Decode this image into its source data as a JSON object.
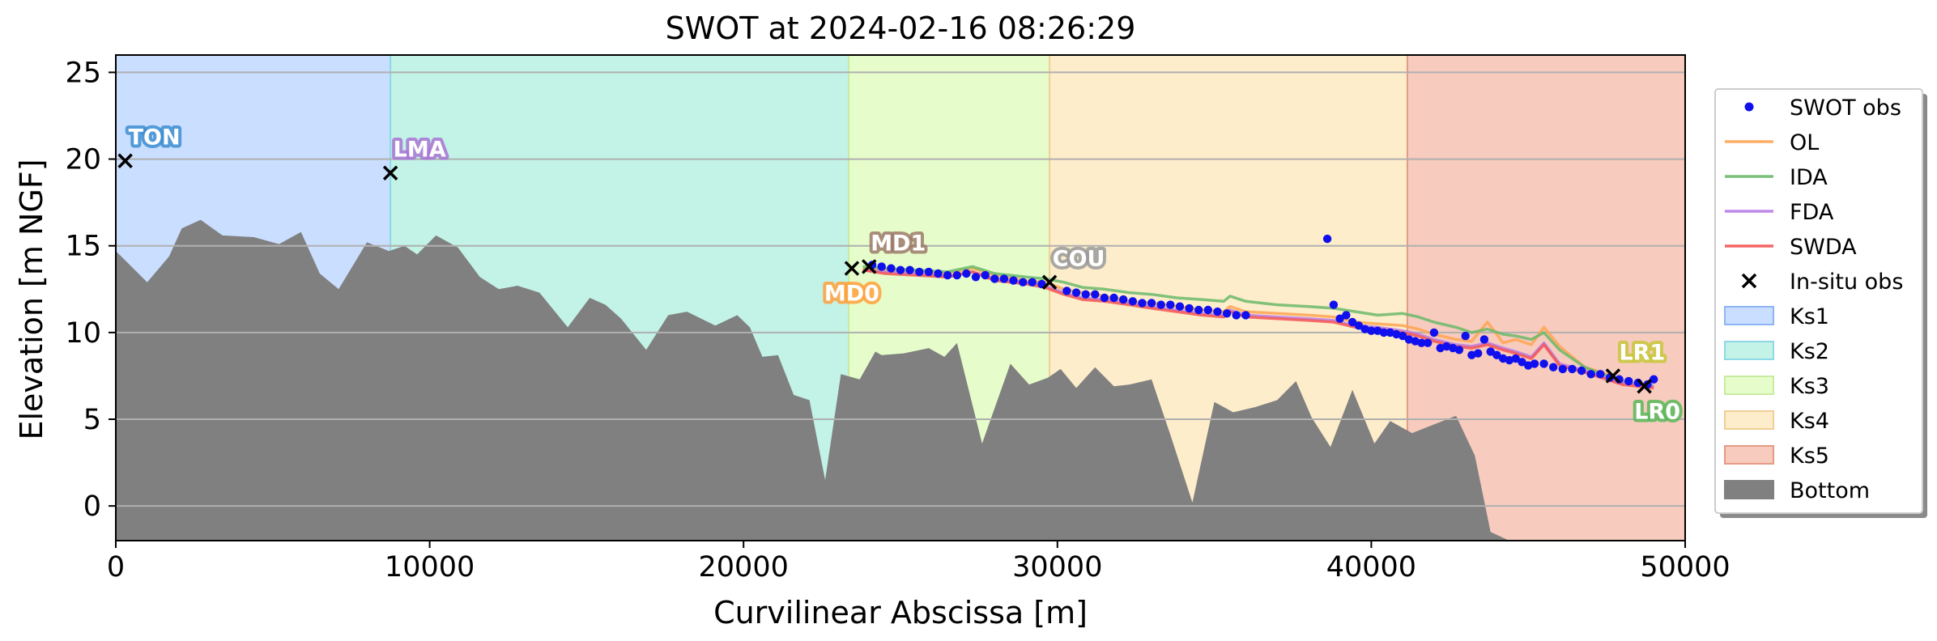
{
  "chart_data": {
    "type": "line",
    "title": "SWOT at 2024-02-16 08:26:29",
    "xlabel": "Curvilinear Abscissa [m]",
    "ylabel": "Elevation [m NGF]",
    "xlim": [
      0,
      50000
    ],
    "ylim": [
      -2,
      26
    ],
    "xticks": [
      0,
      10000,
      20000,
      30000,
      40000,
      50000
    ],
    "xtick_labels": [
      "0",
      "10000",
      "20000",
      "30000",
      "40000",
      "50000"
    ],
    "yticks": [
      0,
      5,
      10,
      15,
      20,
      25
    ],
    "ytick_labels": [
      "0",
      "5",
      "10",
      "15",
      "20",
      "25"
    ],
    "grid": "horizontal",
    "legend_position": "outside-right",
    "zones": [
      {
        "name": "Ks1",
        "x0": 0,
        "x1": 8750,
        "color": "#a9c9ff",
        "edge": "#8fb4f5"
      },
      {
        "name": "Ks2",
        "x0": 8750,
        "x1": 23350,
        "color": "#9debd6",
        "edge": "#8ed8e8"
      },
      {
        "name": "Ks3",
        "x0": 23350,
        "x1": 29750,
        "color": "#d7fbab",
        "edge": "#c9eba0"
      },
      {
        "name": "Ks4",
        "x0": 29750,
        "x1": 41150,
        "color": "#fde2ab",
        "edge": "#f0cf94"
      },
      {
        "name": "Ks5",
        "x0": 41150,
        "x1": 50000,
        "color": "#f2ab94",
        "edge": "#e59a84"
      }
    ],
    "bottom": {
      "name": "Bottom",
      "color": "#808080",
      "x": [
        0,
        1000,
        1700,
        2100,
        2700,
        3400,
        4400,
        5200,
        5900,
        6500,
        7100,
        8000,
        8700,
        9200,
        9600,
        10200,
        10900,
        11600,
        12200,
        12800,
        13500,
        14400,
        15100,
        15600,
        16100,
        16900,
        17600,
        18200,
        19100,
        19800,
        20200,
        20600,
        21100,
        21600,
        22100,
        22600,
        23100,
        23700,
        24200,
        24400,
        25100,
        25900,
        26400,
        26800,
        27600,
        28500,
        29100,
        29700,
        30100,
        30600,
        31200,
        31800,
        32300,
        33000,
        33600,
        34300,
        35000,
        35600,
        36300,
        37000,
        37600,
        38100,
        38700,
        39400,
        40100,
        40600,
        41300,
        42000,
        42700,
        43300,
        43800,
        44400,
        45000,
        45600,
        46300,
        47000,
        47700,
        48300,
        48800,
        49200
      ],
      "y": [
        14.7,
        12.9,
        14.4,
        16.0,
        16.5,
        15.6,
        15.5,
        15.1,
        15.8,
        13.4,
        12.5,
        15.2,
        14.7,
        15.0,
        14.5,
        15.6,
        14.9,
        13.2,
        12.5,
        12.7,
        12.3,
        10.3,
        12.0,
        11.6,
        10.8,
        9.0,
        11.0,
        11.2,
        10.4,
        11.0,
        10.3,
        8.6,
        8.7,
        6.4,
        6.1,
        1.5,
        7.6,
        7.3,
        8.9,
        8.7,
        8.8,
        9.1,
        8.6,
        9.4,
        3.6,
        8.2,
        7.0,
        7.4,
        7.9,
        6.8,
        8.0,
        6.9,
        7.0,
        7.3,
        4.1,
        0.2,
        6.0,
        5.4,
        5.7,
        6.1,
        7.2,
        5.1,
        3.4,
        6.7,
        3.6,
        4.9,
        4.2,
        4.7,
        5.2,
        2.9,
        -1.5,
        -2,
        -2,
        -2,
        -2,
        -2,
        -2,
        -2,
        -2,
        -2
      ]
    },
    "series": [
      {
        "name": "OL",
        "color": "#ffa454",
        "x": [
          23800,
          24500,
          25500,
          26500,
          27300,
          28000,
          29000,
          29600,
          30200,
          30800,
          31500,
          32300,
          33000,
          33800,
          34600,
          35300,
          35500,
          36000,
          37000,
          38000,
          38800,
          39500,
          40200,
          41000,
          41500,
          42000,
          42700,
          43200,
          43700,
          44200,
          44600,
          45100,
          45500,
          46000,
          46800,
          47500,
          48000,
          48500,
          49000
        ],
        "y": [
          13.7,
          13.6,
          13.5,
          13.4,
          13.7,
          13.3,
          13.0,
          12.9,
          12.5,
          12.3,
          12.1,
          11.8,
          11.7,
          11.5,
          11.3,
          11.2,
          11.5,
          11.2,
          11.1,
          11.0,
          10.9,
          10.6,
          10.5,
          10.4,
          10.2,
          9.9,
          9.6,
          9.5,
          10.6,
          9.4,
          9.6,
          9.3,
          10.3,
          9.2,
          8.0,
          7.6,
          7.2,
          7.0,
          6.9
        ]
      },
      {
        "name": "IDA",
        "color": "#6bb86b",
        "x": [
          23800,
          24500,
          25500,
          26500,
          27300,
          28000,
          29000,
          29600,
          30200,
          30800,
          31500,
          32300,
          33000,
          33800,
          34600,
          35300,
          35500,
          36000,
          37000,
          38000,
          38800,
          39500,
          40200,
          41000,
          41500,
          42000,
          42700,
          43200,
          43700,
          44200,
          44600,
          45100,
          45500,
          46000,
          46800,
          47500,
          48000,
          48500,
          49000
        ],
        "y": [
          13.8,
          13.7,
          13.6,
          13.5,
          13.8,
          13.4,
          13.2,
          13.1,
          12.9,
          12.6,
          12.5,
          12.3,
          12.2,
          12.0,
          11.9,
          11.8,
          12.1,
          11.8,
          11.6,
          11.5,
          11.4,
          11.2,
          11.0,
          11.1,
          10.9,
          10.6,
          10.3,
          10.0,
          10.2,
          9.9,
          9.8,
          9.6,
          10.0,
          9.0,
          8.0,
          7.5,
          7.2,
          7.0,
          6.9
        ]
      },
      {
        "name": "FDA",
        "color": "#b87ce6",
        "x": [
          23800,
          24500,
          25500,
          26500,
          27300,
          28000,
          29000,
          29600,
          30200,
          30800,
          31500,
          32300,
          33000,
          33800,
          34600,
          35300,
          35500,
          36000,
          37000,
          38000,
          38800,
          39500,
          40200,
          41000,
          41500,
          42000,
          42700,
          43200,
          43700,
          44200,
          44600,
          45100,
          45500,
          46000,
          46800,
          47500,
          48000,
          48500,
          49000
        ],
        "y": [
          13.6,
          13.5,
          13.4,
          13.2,
          13.5,
          13.1,
          12.9,
          12.7,
          12.3,
          12.0,
          11.9,
          11.7,
          11.5,
          11.3,
          11.1,
          11.0,
          11.3,
          11.0,
          10.9,
          10.8,
          10.7,
          10.4,
          10.3,
          10.1,
          9.9,
          9.6,
          9.3,
          9.2,
          9.4,
          9.1,
          8.9,
          8.6,
          9.4,
          8.2,
          7.8,
          7.4,
          7.1,
          7.0,
          6.9
        ]
      },
      {
        "name": "SWDA",
        "color": "#f55555",
        "x": [
          23800,
          24500,
          25500,
          26500,
          27300,
          28000,
          29000,
          29600,
          30200,
          30800,
          31500,
          32300,
          33000,
          33800,
          34600,
          35300,
          35500,
          36000,
          37000,
          38000,
          38800,
          39500,
          40200,
          41000,
          41500,
          42000,
          42700,
          43200,
          43700,
          44200,
          44600,
          45100,
          45500,
          46000,
          46800,
          47500,
          48000,
          48500,
          49000
        ],
        "y": [
          13.6,
          13.4,
          13.3,
          13.2,
          13.5,
          13.0,
          12.8,
          12.6,
          12.2,
          11.9,
          11.8,
          11.6,
          11.4,
          11.2,
          11.0,
          10.9,
          11.2,
          10.9,
          10.8,
          10.7,
          10.6,
          10.3,
          10.2,
          10.0,
          9.8,
          9.5,
          9.2,
          9.1,
          9.3,
          9.0,
          8.8,
          8.5,
          9.3,
          8.1,
          7.7,
          7.3,
          7.0,
          6.9,
          6.8
        ]
      }
    ],
    "swot_obs": {
      "name": "SWOT obs",
      "color": "#1010ee",
      "x": [
        24100,
        24400,
        24700,
        25000,
        25300,
        25600,
        25900,
        26200,
        26500,
        26800,
        27100,
        27400,
        27700,
        28000,
        28300,
        28600,
        28900,
        29200,
        29500,
        30300,
        30600,
        30900,
        31200,
        31500,
        31800,
        32100,
        32400,
        32700,
        33000,
        33300,
        33600,
        33900,
        34200,
        34500,
        34800,
        35100,
        35400,
        35700,
        36000,
        38600,
        38800,
        39000,
        39200,
        39400,
        39600,
        39800,
        40000,
        40200,
        40400,
        40600,
        40800,
        41000,
        41200,
        41400,
        41600,
        41800,
        42000,
        42200,
        42400,
        42600,
        42800,
        43000,
        43200,
        43400,
        43600,
        43800,
        44000,
        44200,
        44400,
        44600,
        44800,
        45000,
        45200,
        45500,
        45800,
        46100,
        46400,
        46700,
        47000,
        47300,
        47600,
        47900,
        48200,
        48500,
        48800,
        49000
      ],
      "y": [
        13.9,
        13.8,
        13.7,
        13.6,
        13.6,
        13.5,
        13.5,
        13.4,
        13.3,
        13.3,
        13.4,
        13.2,
        13.3,
        13.1,
        13.1,
        13.0,
        12.9,
        12.9,
        12.8,
        12.4,
        12.3,
        12.2,
        12.2,
        12.0,
        12.0,
        11.9,
        11.8,
        11.7,
        11.7,
        11.6,
        11.6,
        11.5,
        11.4,
        11.3,
        11.3,
        11.2,
        11.1,
        11.0,
        11.0,
        15.4,
        11.6,
        10.8,
        11.0,
        10.6,
        10.4,
        10.2,
        10.1,
        10.1,
        10.0,
        10.0,
        9.9,
        9.8,
        9.6,
        9.5,
        9.4,
        9.4,
        10.0,
        9.1,
        9.2,
        9.1,
        9.0,
        9.8,
        8.7,
        8.8,
        9.6,
        8.9,
        8.7,
        8.5,
        8.4,
        8.5,
        8.3,
        8.1,
        8.2,
        8.2,
        8.0,
        7.9,
        7.9,
        7.8,
        7.6,
        7.6,
        7.4,
        7.3,
        7.2,
        7.1,
        7.0,
        7.3
      ]
    },
    "insitu_obs": {
      "name": "In-situ obs",
      "color": "#000000",
      "points": [
        {
          "label": "TON",
          "x": 300,
          "y": 19.9,
          "color": "#3d8ed1",
          "pos": "above"
        },
        {
          "label": "LMA",
          "x": 8750,
          "y": 19.2,
          "color": "#a874d4",
          "pos": "above"
        },
        {
          "label": "MD0",
          "x": 23450,
          "y": 13.7,
          "color": "#ffa03c",
          "pos": "below"
        },
        {
          "label": "MD1",
          "x": 24000,
          "y": 13.8,
          "color": "#9e7a6c",
          "pos": "above"
        },
        {
          "label": "COU",
          "x": 29750,
          "y": 12.9,
          "color": "#9a9a9a",
          "pos": "above"
        },
        {
          "label": "LR1",
          "x": 47700,
          "y": 7.5,
          "color": "#c8c83c",
          "pos": "above"
        },
        {
          "label": "LR0",
          "x": 48700,
          "y": 6.9,
          "color": "#5bb85b",
          "pos": "below"
        }
      ]
    },
    "legend": [
      {
        "label": "SWOT obs",
        "kind": "dot",
        "color": "#1010ee"
      },
      {
        "label": "OL",
        "kind": "line",
        "color": "#ffa454"
      },
      {
        "label": "IDA",
        "kind": "line",
        "color": "#6bb86b"
      },
      {
        "label": "FDA",
        "kind": "line",
        "color": "#b87ce6"
      },
      {
        "label": "SWDA",
        "kind": "line",
        "color": "#f55555"
      },
      {
        "label": "In-situ obs",
        "kind": "x",
        "color": "#000000"
      },
      {
        "label": "Ks1",
        "kind": "patch",
        "color": "#a9c9ff",
        "edge": "#8fb4f5"
      },
      {
        "label": "Ks2",
        "kind": "patch",
        "color": "#9debd6",
        "edge": "#8ed8e8"
      },
      {
        "label": "Ks3",
        "kind": "patch",
        "color": "#d7fbab",
        "edge": "#c9eba0"
      },
      {
        "label": "Ks4",
        "kind": "patch",
        "color": "#fde2ab",
        "edge": "#f0cf94"
      },
      {
        "label": "Ks5",
        "kind": "patch",
        "color": "#f2ab94",
        "edge": "#e59a84"
      },
      {
        "label": "Bottom",
        "kind": "patch",
        "color": "#808080",
        "edge": "#808080"
      }
    ]
  }
}
